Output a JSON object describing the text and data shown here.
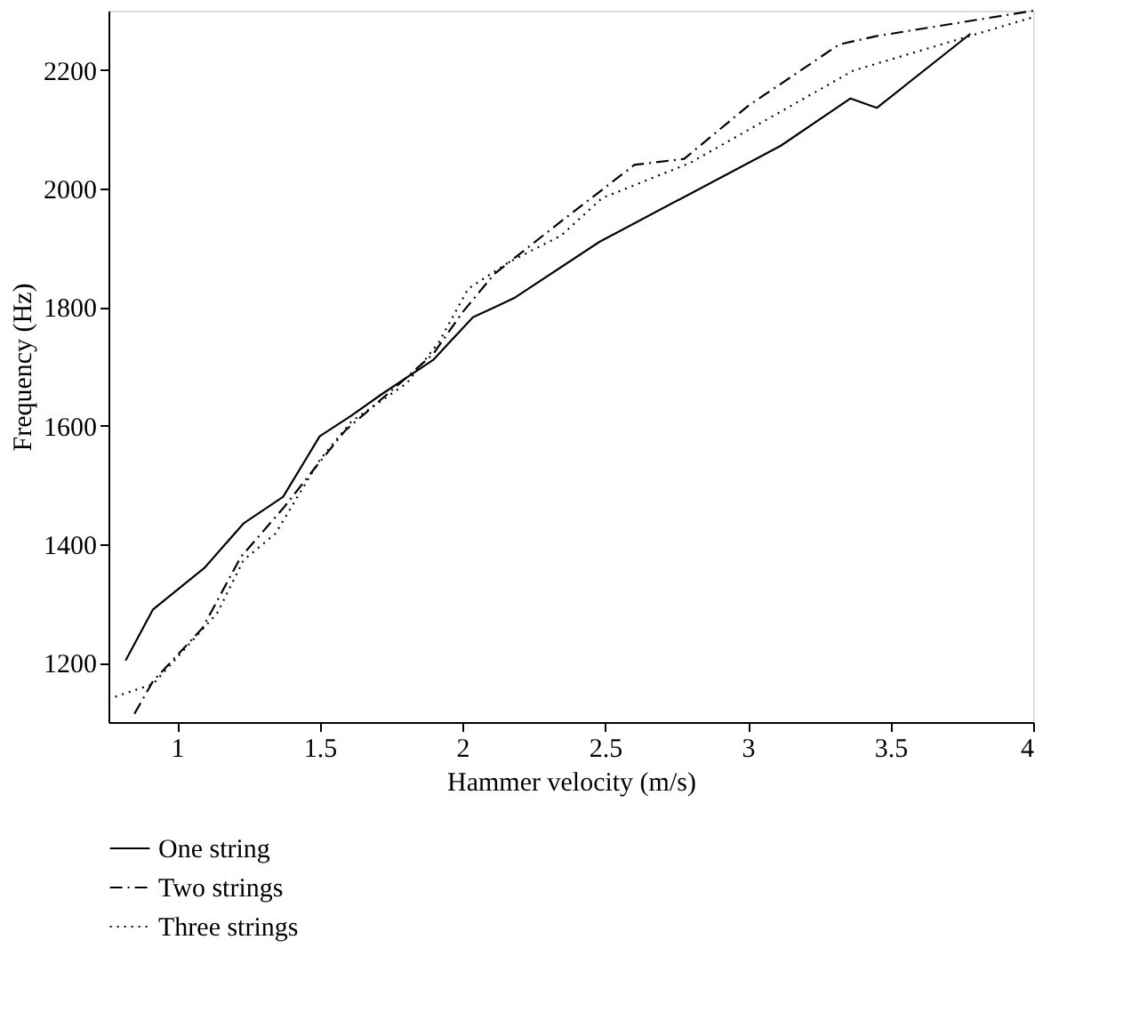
{
  "chart_data": {
    "type": "line",
    "xlabel": "Hammer velocity (m/s)",
    "ylabel": "Frequency (Hz)",
    "xlim": [
      0.76,
      4
    ],
    "ylim": [
      1100,
      2300
    ],
    "xticks": [
      1,
      1.5,
      2,
      2.5,
      3,
      3.5,
      4
    ],
    "yticks": [
      1200,
      1400,
      1600,
      1800,
      2000,
      2200
    ],
    "grid": false,
    "legend": "bottom",
    "marker": "none",
    "series": [
      {
        "name": "One string",
        "color": "#000000",
        "line_style": "solid",
        "x": [
          0.82,
          0.916,
          1.096,
          1.233,
          1.372,
          1.5,
          1.611,
          1.714,
          1.898,
          2.037,
          2.118,
          2.184,
          2.48,
          3.115,
          3.36,
          3.452,
          3.78
        ],
        "values": [
          1204,
          1290,
          1360,
          1435,
          1480,
          1582,
          1617,
          1652,
          1711,
          1783,
          1801,
          1816,
          1910,
          2072,
          2152,
          2136,
          2261
        ]
      },
      {
        "name": "Two strings",
        "color": "#000000",
        "line_style": "dashdot",
        "x": [
          0.851,
          0.916,
          1.09,
          1.223,
          1.376,
          1.489,
          1.59,
          1.806,
          1.898,
          2.0,
          2.112,
          2.347,
          2.603,
          2.777,
          3.0,
          3.32,
          3.45,
          4.0
        ],
        "values": [
          1114,
          1169,
          1259,
          1378,
          1463,
          1532,
          1592,
          1682,
          1721,
          1791,
          1856,
          1945,
          2040,
          2050,
          2139,
          2243,
          2257,
          2300
        ]
      },
      {
        "name": "Three strings",
        "color": "#000000",
        "line_style": "dotted",
        "x": [
          0.76,
          0.916,
          1.141,
          1.233,
          1.345,
          1.5,
          1.611,
          1.806,
          1.918,
          2.02,
          2.164,
          2.347,
          2.49,
          2.797,
          3.37,
          4.0
        ],
        "values": [
          1139,
          1164,
          1284,
          1373,
          1418,
          1542,
          1607,
          1672,
          1741,
          1831,
          1876,
          1921,
          1984,
          2043,
          2199,
          2289
        ]
      }
    ]
  }
}
